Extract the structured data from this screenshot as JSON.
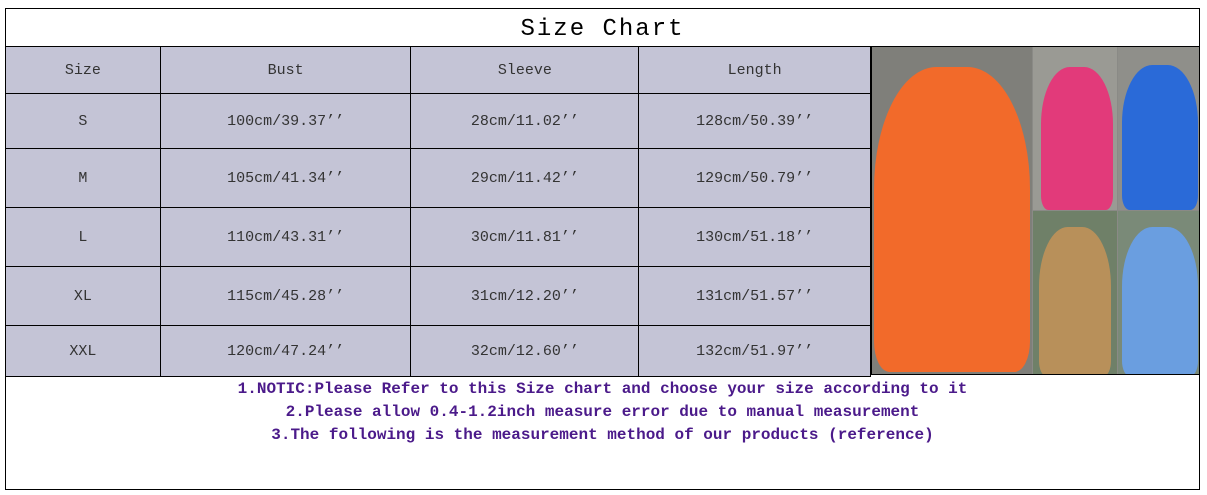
{
  "title": "Size Chart",
  "table": {
    "headers": [
      "Size",
      "Bust",
      "Sleeve",
      "Length"
    ],
    "rows": [
      [
        "S",
        "100cm/39.37’’",
        "28cm/11.02’’",
        "128cm/50.39’’"
      ],
      [
        "M",
        "105cm/41.34’’",
        "29cm/11.42’’",
        "129cm/50.79’’"
      ],
      [
        "L",
        "110cm/43.31’’",
        "30cm/11.81’’",
        "130cm/51.18’’"
      ],
      [
        "XL",
        "115cm/45.28’’",
        "31cm/12.20’’",
        "131cm/51.57’’"
      ],
      [
        "XXL",
        "120cm/47.24’’",
        "32cm/12.60’’",
        "132cm/51.97’’"
      ]
    ]
  },
  "photo": {
    "dress_colors": [
      "#f26a2a",
      "#e23a7a",
      "#2a6ad8",
      "#b8905a",
      "#6a9ee0"
    ]
  },
  "notes": [
    "1.NOTIC:Please Refer to this Size chart and choose your size according to it",
    "2.Please allow 0.4-1.2inch measure error due to manual measurement",
    "3.The following is the measurement method of our products (reference)"
  ]
}
